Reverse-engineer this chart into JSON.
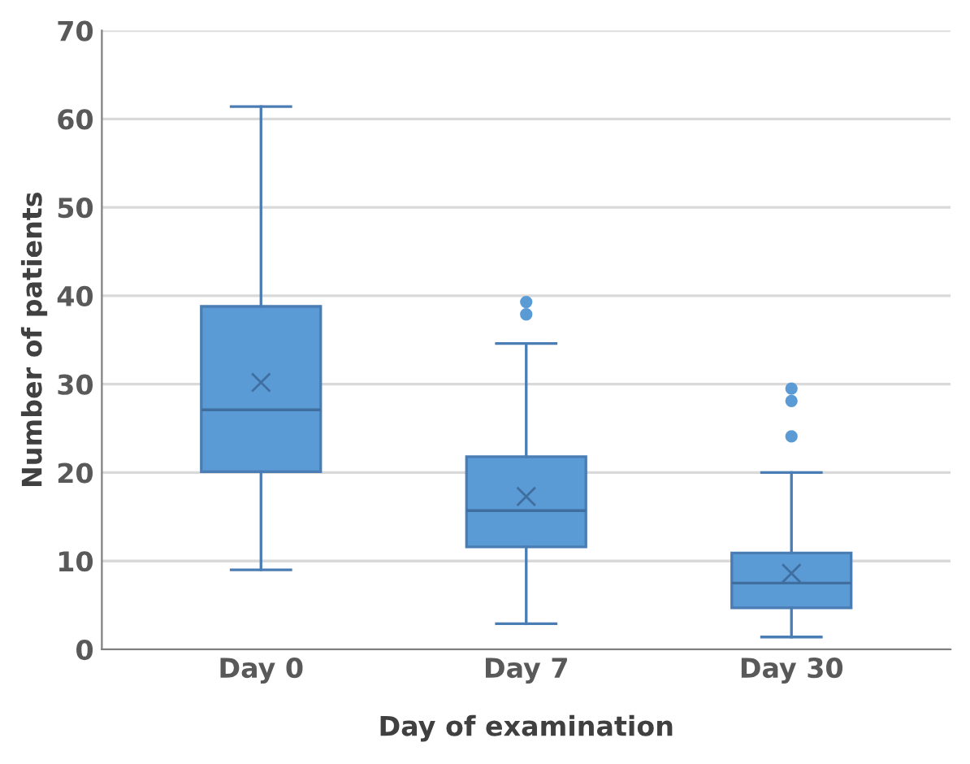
{
  "chart_data": {
    "type": "box",
    "xlabel": "Day of examination",
    "ylabel": "Number of patients",
    "categories": [
      "Day 0",
      "Day 7",
      "Day 30"
    ],
    "color": "#5b9bd5",
    "boxes": [
      {
        "low": 9.0,
        "q1": 20.1,
        "median": 27.1,
        "q3": 38.8,
        "high": 61.4,
        "mean": 30.2
      },
      {
        "low": 2.9,
        "q1": 11.6,
        "median": 15.7,
        "q3": 21.8,
        "high": 34.6,
        "mean": 17.3,
        "outliers": [
          37.9,
          39.3
        ]
      },
      {
        "low": 1.4,
        "q1": 4.7,
        "median": 7.5,
        "q3": 10.9,
        "high": 20.0,
        "mean": 8.6,
        "outliers": [
          24.1,
          28.1,
          29.5
        ]
      }
    ],
    "ylim": [
      0,
      70
    ],
    "yticks": [
      0,
      10,
      20,
      30,
      40,
      50,
      60,
      70
    ],
    "grid": "y",
    "marker": "cross"
  }
}
